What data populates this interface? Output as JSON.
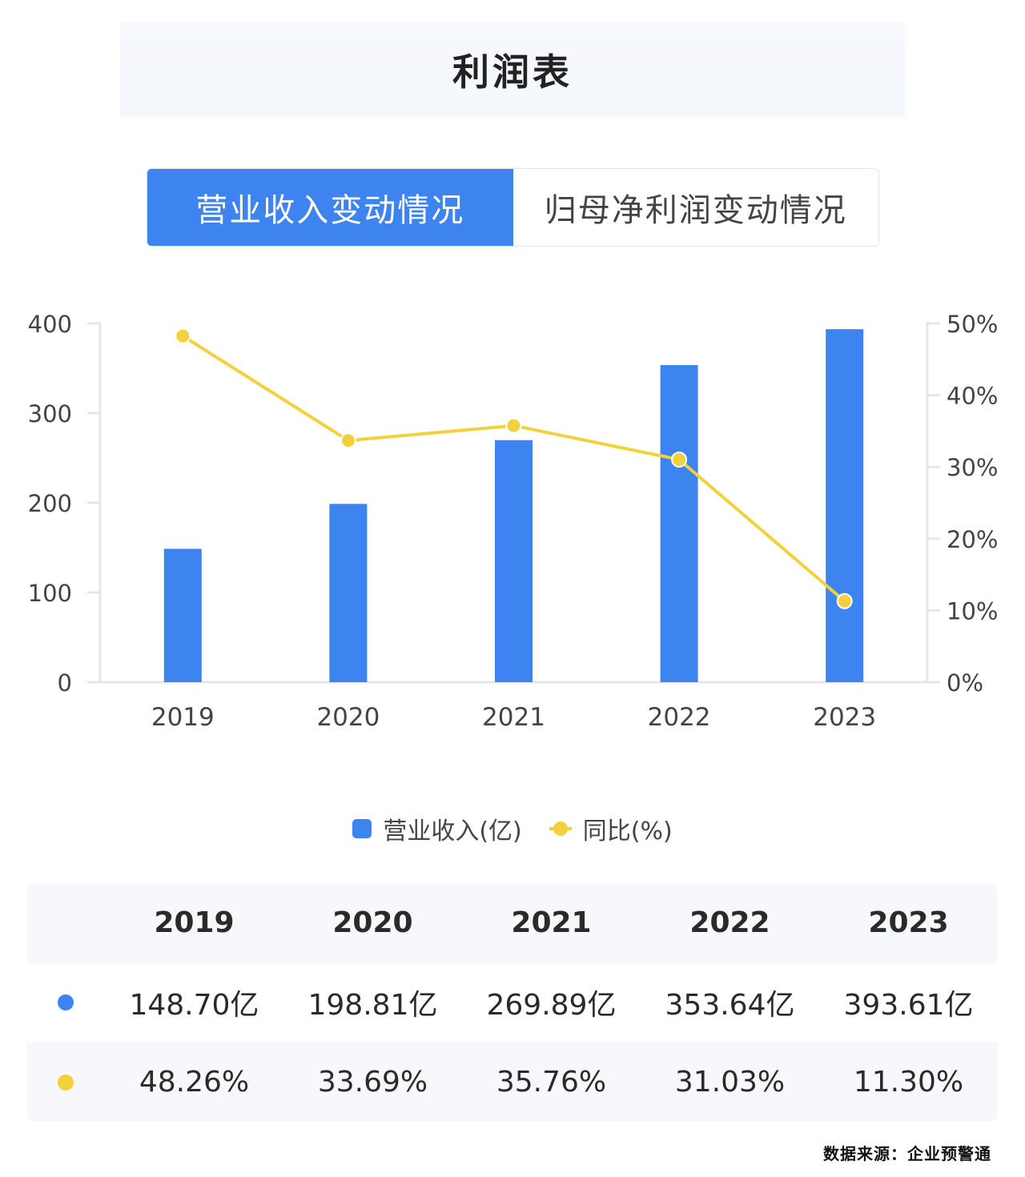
{
  "title": "利润表",
  "tabs": [
    {
      "label": "营业收入变动情况",
      "active": true
    },
    {
      "label": "归母净利润变动情况",
      "active": false
    }
  ],
  "colors": {
    "bar": "#3d84f0",
    "line": "#f3d13d",
    "axis": "#e6e6e6",
    "tick_text": "#444444"
  },
  "chart_data": {
    "type": "bar+line",
    "categories": [
      "2019",
      "2020",
      "2021",
      "2022",
      "2023"
    ],
    "series": [
      {
        "name": "营业收入(亿)",
        "type": "bar",
        "axis": "left",
        "values": [
          148.7,
          198.81,
          269.89,
          353.64,
          393.61
        ]
      },
      {
        "name": "同比(%)",
        "type": "line",
        "axis": "right",
        "values": [
          48.26,
          33.69,
          35.76,
          31.03,
          11.3
        ]
      }
    ],
    "y_left": {
      "min": 0,
      "max": 400,
      "ticks": [
        0,
        100,
        200,
        300,
        400
      ]
    },
    "y_right": {
      "min": 0,
      "max": 50,
      "ticks": [
        "0%",
        "10%",
        "20%",
        "30%",
        "40%",
        "50%"
      ]
    },
    "legend": "bottom-center",
    "grid": false
  },
  "legend": {
    "bar": "营业收入(亿)",
    "line": "同比(%)"
  },
  "table": {
    "years": [
      "2019",
      "2020",
      "2021",
      "2022",
      "2023"
    ],
    "revenue": [
      "148.70亿",
      "198.81亿",
      "269.89亿",
      "353.64亿",
      "393.61亿"
    ],
    "growth": [
      "48.26%",
      "33.69%",
      "35.76%",
      "31.03%",
      "11.30%"
    ]
  },
  "source": "数据来源：企业预警通"
}
